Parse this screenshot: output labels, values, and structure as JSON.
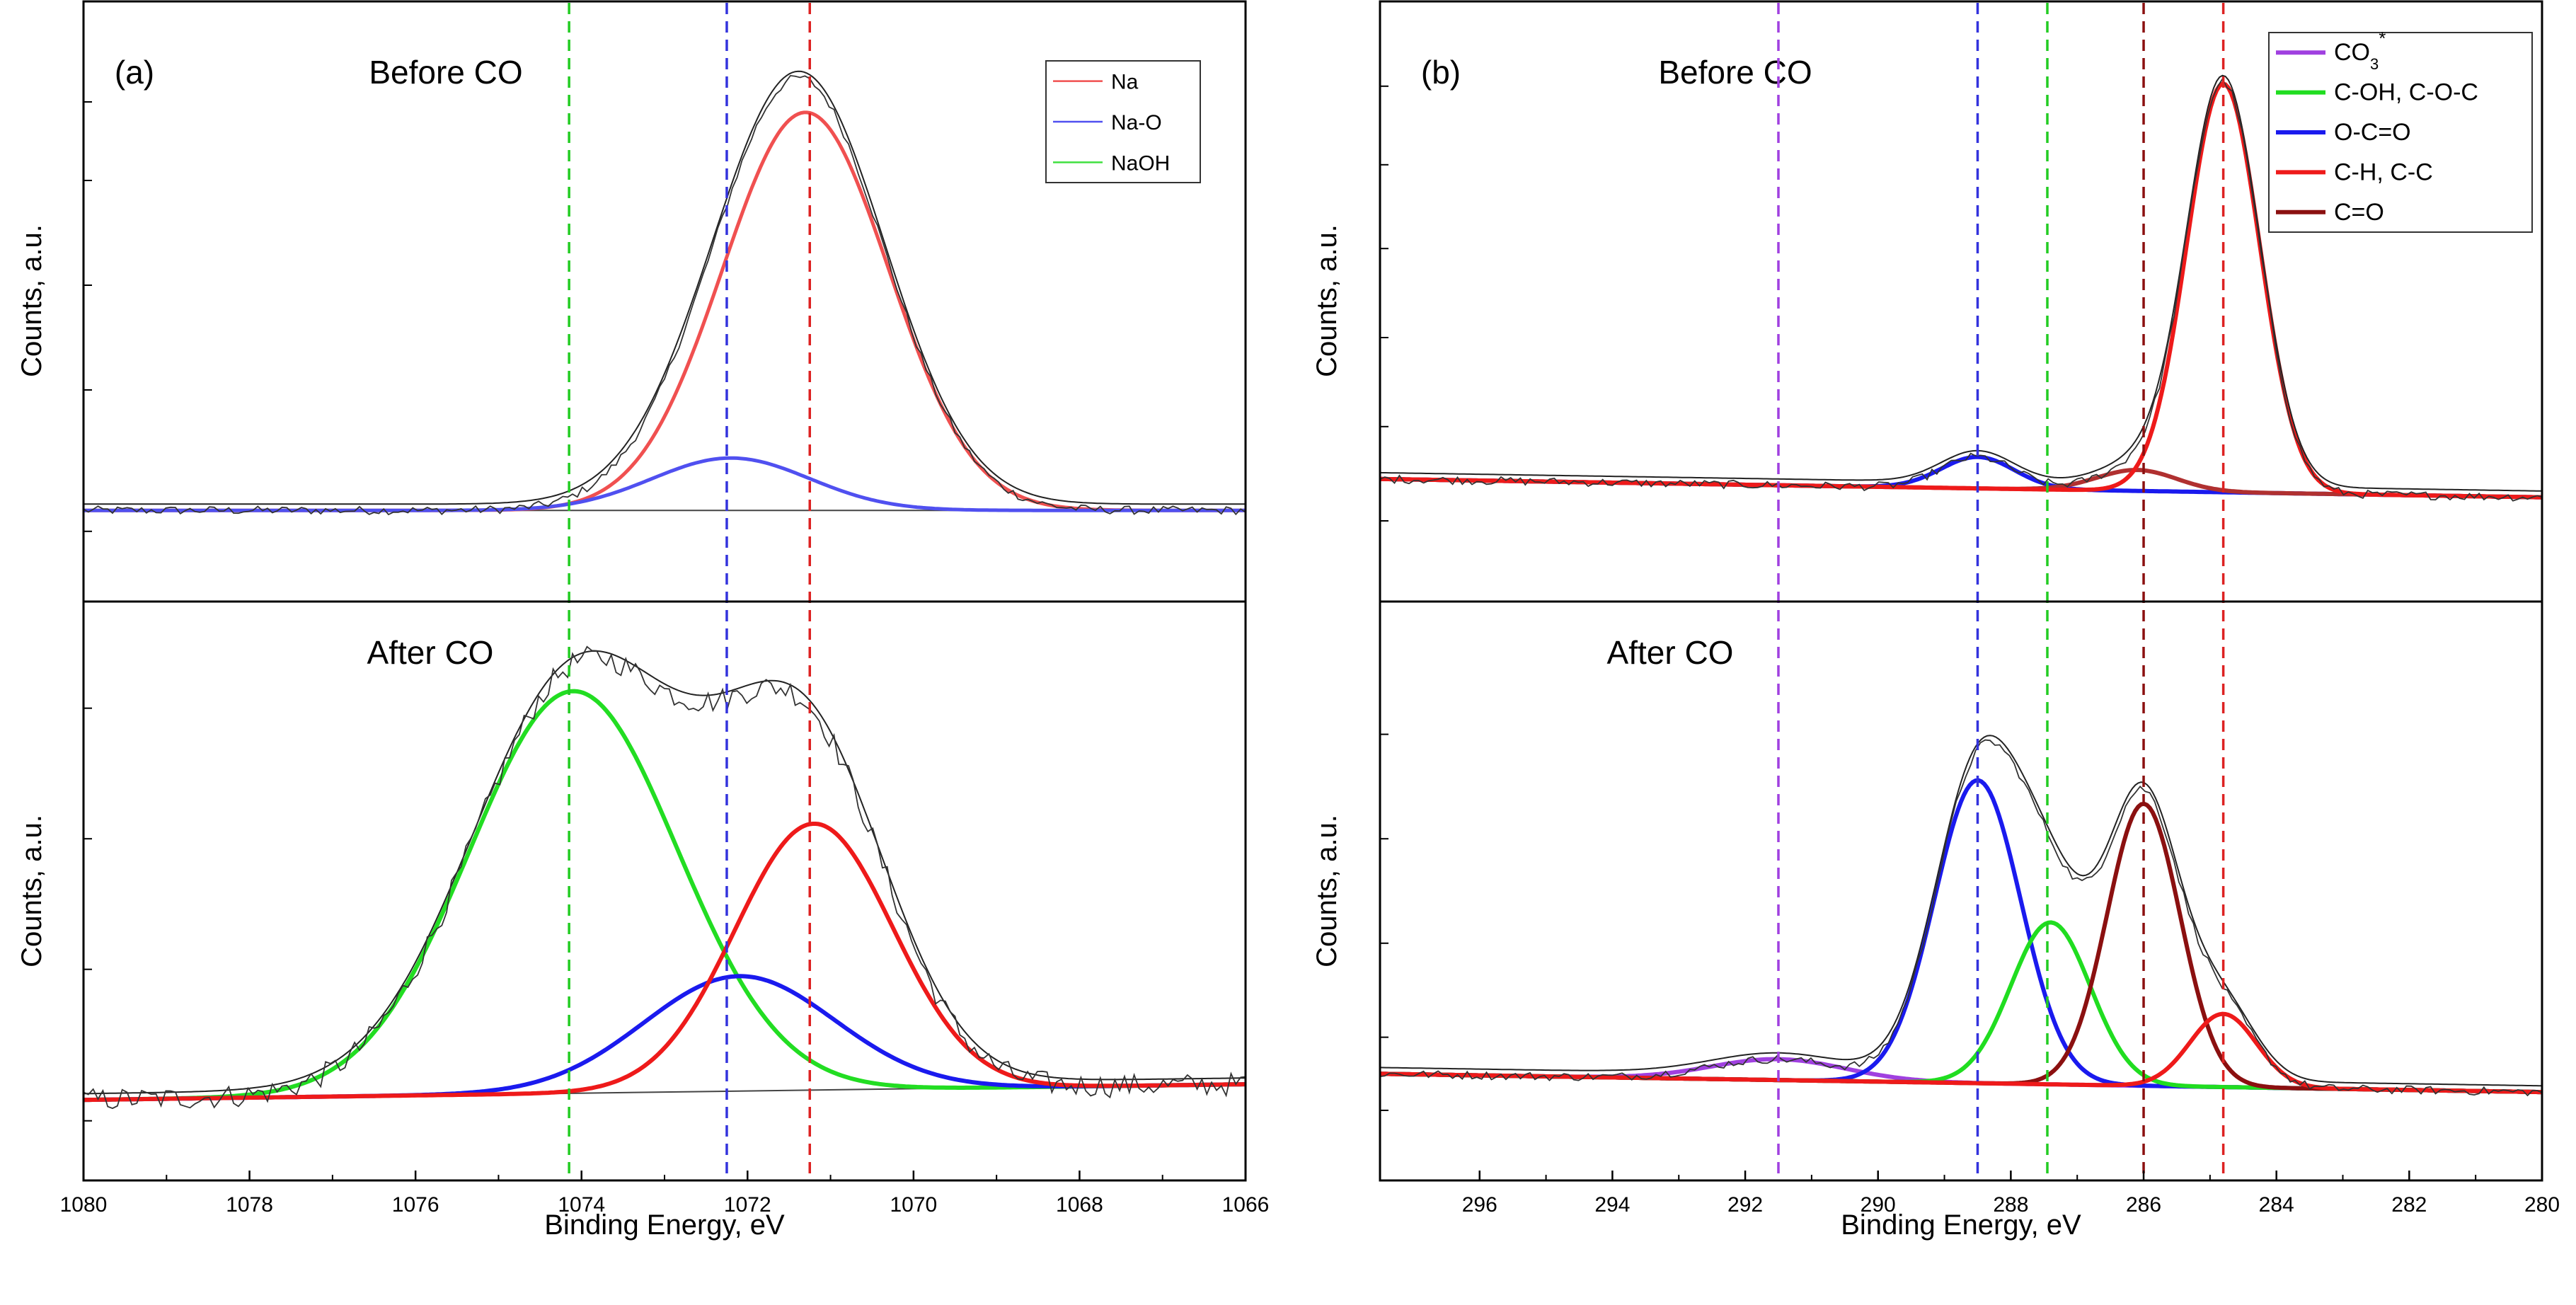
{
  "chart_data": [
    {
      "type": "line",
      "panel_label": "(a)",
      "xlabel": "Binding Energy, eV",
      "ylabel": "Counts, a.u.",
      "xlim": [
        1080,
        1066
      ],
      "x_ticks": [
        1080,
        1078,
        1076,
        1074,
        1072,
        1070,
        1068,
        1066
      ],
      "legend": [
        {
          "name": "Na",
          "color": "#f05050"
        },
        {
          "name": "Na-O",
          "color": "#5050f0"
        },
        {
          "name": "NaOH",
          "color": "#40e040"
        }
      ],
      "reference_lines": [
        {
          "x": 1074.15,
          "color": "#22cc22"
        },
        {
          "x": 1072.25,
          "color": "#3333dd"
        },
        {
          "x": 1071.25,
          "color": "#dd2222"
        }
      ],
      "subplots": [
        {
          "title": "Before CO",
          "ylim": [
            0,
            100
          ],
          "baseline": {
            "y_at_1080": 12.0,
            "y_at_1066": 12.0
          },
          "components": [
            {
              "name": "Na",
              "color": "#f05050",
              "center": 1071.3,
              "amplitude": 76,
              "sigma": 1.0
            },
            {
              "name": "Na-O",
              "color": "#5050f0",
              "center": 1072.2,
              "amplitude": 10,
              "sigma": 0.95
            }
          ],
          "envelope": {
            "peak_x": 1071.25,
            "peak_y": 90
          }
        },
        {
          "title": "After CO",
          "ylim": [
            0,
            100
          ],
          "baseline": {
            "y_at_1080": 10.0,
            "y_at_1066": 13.0
          },
          "components": [
            {
              "name": "NaOH",
              "color": "#22dd22",
              "center": 1074.1,
              "amplitude": 77,
              "sigma": 1.25
            },
            {
              "name": "Na-O",
              "color": "#1a1aee",
              "center": 1072.1,
              "amplitude": 22,
              "sigma": 1.15
            },
            {
              "name": "Na",
              "color": "#ee1a1a",
              "center": 1071.2,
              "amplitude": 51,
              "sigma": 0.95
            }
          ],
          "envelope": {
            "peak_x": 1074.0,
            "peak_y": 93
          }
        }
      ]
    },
    {
      "type": "line",
      "panel_label": "(b)",
      "xlabel": "Binding Energy, eV",
      "ylabel": "Counts, a.u.",
      "xlim": [
        297.5,
        280
      ],
      "x_ticks": [
        296,
        294,
        292,
        290,
        288,
        286,
        284,
        282,
        280
      ],
      "legend": [
        {
          "name": "CO",
          "sub": "3",
          "sup": "*",
          "color": "#a040e0"
        },
        {
          "name": "C-OH, C-O-C",
          "color": "#20dd20"
        },
        {
          "name": "O-C=O",
          "color": "#1a1aee"
        },
        {
          "name": "C-H, C-C",
          "color": "#ee1a1a"
        },
        {
          "name": "C=O",
          "color": "#8b1010"
        }
      ],
      "reference_lines": [
        {
          "x": 291.5,
          "color": "#a040e0"
        },
        {
          "x": 288.5,
          "color": "#3333dd"
        },
        {
          "x": 287.45,
          "color": "#22cc22"
        },
        {
          "x": 286.0,
          "color": "#8b1010"
        },
        {
          "x": 284.8,
          "color": "#dd2222"
        }
      ],
      "subplots": [
        {
          "title": "Before CO",
          "ylim": [
            0,
            100
          ],
          "baseline": {
            "y_at_297.5": 18.0,
            "y_at_280": 14.5
          },
          "components": [
            {
              "name": "O-C=O",
              "color": "#1a1aee",
              "center": 288.5,
              "amplitude": 6,
              "sigma": 0.55
            },
            {
              "name": "C=O",
              "color": "#b03030",
              "center": 286.1,
              "amplitude": 4,
              "sigma": 0.6
            },
            {
              "name": "C-H, C-C",
              "color": "#ee1a1a",
              "center": 284.8,
              "amplitude": 78,
              "sigma": 0.55
            }
          ],
          "envelope": {
            "peak_x": 284.8,
            "peak_y": 94
          }
        },
        {
          "title": "After CO",
          "ylim": [
            0,
            100
          ],
          "baseline": {
            "y_at_297.5": 15.0,
            "y_at_280": 11.5
          },
          "components": [
            {
              "name": "CO3*",
              "color": "#a040e0",
              "center": 291.5,
              "amplitude": 4,
              "sigma": 1.0
            },
            {
              "name": "O-C=O",
              "color": "#1a1aee",
              "center": 288.5,
              "amplitude": 58,
              "sigma": 0.65
            },
            {
              "name": "C-OH, C-O-C",
              "color": "#20dd20",
              "center": 287.4,
              "amplitude": 31,
              "sigma": 0.6
            },
            {
              "name": "C=O",
              "color": "#8b1010",
              "center": 286.0,
              "amplitude": 54,
              "sigma": 0.55
            },
            {
              "name": "C-H, C-C",
              "color": "#ee1a1a",
              "center": 284.8,
              "amplitude": 14,
              "sigma": 0.5
            }
          ],
          "envelope": {
            "peak_x": 288.4,
            "peak_y": 85
          }
        }
      ]
    }
  ]
}
